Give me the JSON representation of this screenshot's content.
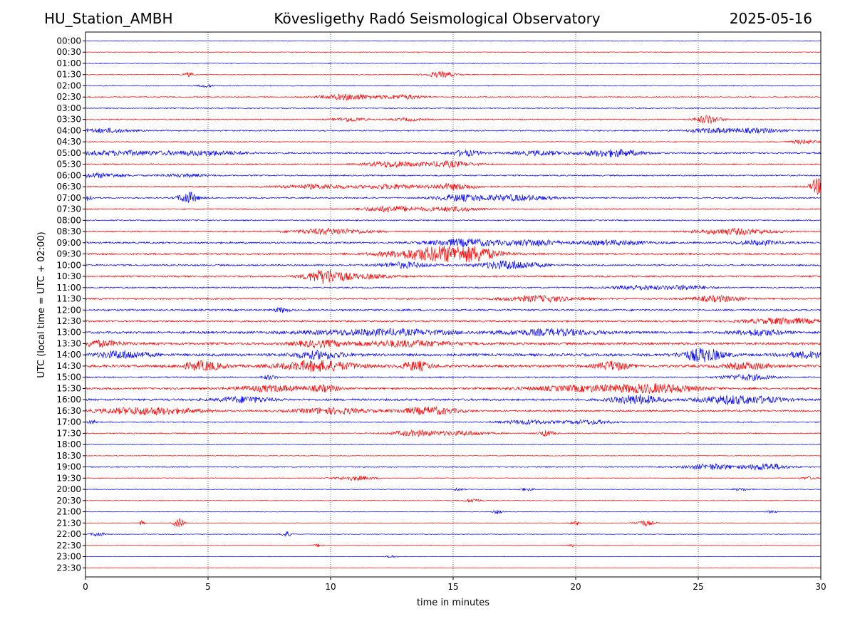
{
  "header": {
    "station": "HU_Station_AMBH",
    "title": "Kövesligethy Radó Seismological Observatory",
    "date": "2025-05-16"
  },
  "chart_data": {
    "type": "line",
    "xlabel": "time in minutes",
    "ylabel": "UTC (local time = UTC + 02:00)",
    "xlim": [
      0,
      30
    ],
    "x_ticks": [
      "0",
      "5",
      "10",
      "15",
      "20",
      "25",
      "30"
    ],
    "grid": "vertical dotted lines at each 5-minute tick",
    "colors": {
      "even_rows": "#0000ff",
      "odd_rows": "#ff0000"
    },
    "rows": [
      {
        "label": "00:00",
        "noise": 0.5,
        "events": []
      },
      {
        "label": "00:30",
        "noise": 0.5,
        "events": []
      },
      {
        "label": "01:00",
        "noise": 0.6,
        "events": []
      },
      {
        "label": "01:30",
        "noise": 0.6,
        "events": [
          {
            "t": 4.2,
            "w": 0.2,
            "a": 3
          },
          {
            "t": 14.5,
            "w": 0.6,
            "a": 4
          }
        ]
      },
      {
        "label": "02:00",
        "noise": 0.6,
        "events": [
          {
            "t": 4.9,
            "w": 0.3,
            "a": 2
          }
        ]
      },
      {
        "label": "02:30",
        "noise": 0.8,
        "events": [
          {
            "t": 10.8,
            "w": 1.2,
            "a": 4
          },
          {
            "t": 13.0,
            "w": 0.8,
            "a": 3
          }
        ]
      },
      {
        "label": "03:00",
        "noise": 0.8,
        "events": []
      },
      {
        "label": "03:30",
        "noise": 0.8,
        "events": [
          {
            "t": 10.8,
            "w": 0.6,
            "a": 3
          },
          {
            "t": 13.2,
            "w": 0.6,
            "a": 2
          },
          {
            "t": 25.4,
            "w": 0.5,
            "a": 6
          }
        ]
      },
      {
        "label": "04:00",
        "noise": 1.0,
        "events": [
          {
            "t": 0.8,
            "w": 1.0,
            "a": 3
          },
          {
            "t": 25.6,
            "w": 1.0,
            "a": 3
          },
          {
            "t": 27.5,
            "w": 1.0,
            "a": 3
          }
        ]
      },
      {
        "label": "04:30",
        "noise": 0.7,
        "events": [
          {
            "t": 29.3,
            "w": 0.5,
            "a": 3
          }
        ]
      },
      {
        "label": "05:00",
        "noise": 1.2,
        "events": [
          {
            "t": 1.5,
            "w": 2.0,
            "a": 3
          },
          {
            "t": 5.0,
            "w": 1.5,
            "a": 3
          },
          {
            "t": 15.5,
            "w": 0.6,
            "a": 4
          },
          {
            "t": 18.5,
            "w": 1.0,
            "a": 3
          },
          {
            "t": 21.5,
            "w": 1.2,
            "a": 5
          }
        ]
      },
      {
        "label": "05:30",
        "noise": 1.0,
        "events": [
          {
            "t": 12.5,
            "w": 1.0,
            "a": 4
          },
          {
            "t": 14.8,
            "w": 1.0,
            "a": 4
          }
        ]
      },
      {
        "label": "06:00",
        "noise": 1.0,
        "events": [
          {
            "t": 0.6,
            "w": 1.0,
            "a": 3
          },
          {
            "t": 4.0,
            "w": 1.0,
            "a": 2
          }
        ]
      },
      {
        "label": "06:30",
        "noise": 1.0,
        "events": [
          {
            "t": 9.5,
            "w": 1.5,
            "a": 3
          },
          {
            "t": 12.5,
            "w": 1.0,
            "a": 3
          },
          {
            "t": 15.0,
            "w": 1.0,
            "a": 4
          },
          {
            "t": 29.9,
            "w": 0.3,
            "a": 12
          }
        ]
      },
      {
        "label": "07:00",
        "noise": 1.0,
        "events": [
          {
            "t": 0.1,
            "w": 0.2,
            "a": 5
          },
          {
            "t": 4.2,
            "w": 0.4,
            "a": 8
          },
          {
            "t": 15.2,
            "w": 1.0,
            "a": 4
          },
          {
            "t": 17.5,
            "w": 1.5,
            "a": 4
          }
        ]
      },
      {
        "label": "07:30",
        "noise": 0.9,
        "events": [
          {
            "t": 12.5,
            "w": 1.2,
            "a": 4
          },
          {
            "t": 15.0,
            "w": 1.0,
            "a": 3
          }
        ]
      },
      {
        "label": "08:00",
        "noise": 0.9,
        "events": []
      },
      {
        "label": "08:30",
        "noise": 1.0,
        "events": [
          {
            "t": 10.0,
            "w": 1.5,
            "a": 4
          },
          {
            "t": 26.5,
            "w": 1.5,
            "a": 4
          }
        ]
      },
      {
        "label": "09:00",
        "noise": 1.3,
        "events": [
          {
            "t": 15.5,
            "w": 1.5,
            "a": 5
          },
          {
            "t": 18.3,
            "w": 1.0,
            "a": 4
          },
          {
            "t": 21.5,
            "w": 1.5,
            "a": 3
          },
          {
            "t": 27.5,
            "w": 1.0,
            "a": 3
          }
        ]
      },
      {
        "label": "09:30",
        "noise": 1.3,
        "events": [
          {
            "t": 14.5,
            "w": 2.0,
            "a": 10
          },
          {
            "t": 15.6,
            "w": 0.8,
            "a": 9
          }
        ]
      },
      {
        "label": "10:00",
        "noise": 1.2,
        "events": [
          {
            "t": 13.0,
            "w": 1.0,
            "a": 4
          },
          {
            "t": 17.3,
            "w": 1.2,
            "a": 6
          }
        ]
      },
      {
        "label": "10:30",
        "noise": 1.2,
        "events": [
          {
            "t": 9.8,
            "w": 0.8,
            "a": 10
          },
          {
            "t": 11.5,
            "w": 1.0,
            "a": 3
          }
        ]
      },
      {
        "label": "11:00",
        "noise": 1.0,
        "events": [
          {
            "t": 22.5,
            "w": 1.0,
            "a": 3
          },
          {
            "t": 24.5,
            "w": 1.0,
            "a": 3
          }
        ]
      },
      {
        "label": "11:30",
        "noise": 1.1,
        "events": [
          {
            "t": 18.5,
            "w": 1.5,
            "a": 4
          },
          {
            "t": 25.8,
            "w": 1.0,
            "a": 4
          }
        ]
      },
      {
        "label": "12:00",
        "noise": 1.4,
        "events": [
          {
            "t": 8.0,
            "w": 0.3,
            "a": 3
          }
        ]
      },
      {
        "label": "12:30",
        "noise": 1.3,
        "events": [
          {
            "t": 28.5,
            "w": 1.5,
            "a": 4
          }
        ]
      },
      {
        "label": "13:00",
        "noise": 1.7,
        "events": [
          {
            "t": 12.0,
            "w": 3.0,
            "a": 4
          },
          {
            "t": 19.0,
            "w": 2.0,
            "a": 4
          },
          {
            "t": 27.5,
            "w": 1.0,
            "a": 4
          }
        ]
      },
      {
        "label": "13:30",
        "noise": 1.8,
        "events": [
          {
            "t": 0.5,
            "w": 1.0,
            "a": 4
          },
          {
            "t": 9.5,
            "w": 1.0,
            "a": 4
          },
          {
            "t": 13.0,
            "w": 2.0,
            "a": 4
          }
        ]
      },
      {
        "label": "14:00",
        "noise": 2.0,
        "events": [
          {
            "t": 1.5,
            "w": 1.0,
            "a": 5
          },
          {
            "t": 9.5,
            "w": 1.0,
            "a": 5
          },
          {
            "t": 25.2,
            "w": 0.8,
            "a": 9
          },
          {
            "t": 29.5,
            "w": 1.0,
            "a": 4
          }
        ]
      },
      {
        "label": "14:30",
        "noise": 2.0,
        "events": [
          {
            "t": 4.8,
            "w": 0.8,
            "a": 6
          },
          {
            "t": 9.5,
            "w": 1.5,
            "a": 7
          },
          {
            "t": 13.5,
            "w": 0.6,
            "a": 6
          },
          {
            "t": 21.5,
            "w": 0.6,
            "a": 6
          },
          {
            "t": 27.0,
            "w": 1.0,
            "a": 4
          }
        ]
      },
      {
        "label": "15:00",
        "noise": 1.0,
        "events": [
          {
            "t": 7.5,
            "w": 0.3,
            "a": 3
          },
          {
            "t": 27.0,
            "w": 1.0,
            "a": 4
          }
        ]
      },
      {
        "label": "15:30",
        "noise": 1.4,
        "events": [
          {
            "t": 7.5,
            "w": 1.5,
            "a": 4
          },
          {
            "t": 9.8,
            "w": 0.6,
            "a": 4
          },
          {
            "t": 21.0,
            "w": 3.0,
            "a": 4
          },
          {
            "t": 23.5,
            "w": 1.5,
            "a": 4
          }
        ]
      },
      {
        "label": "16:00",
        "noise": 1.6,
        "events": [
          {
            "t": 6.5,
            "w": 1.0,
            "a": 4
          },
          {
            "t": 22.5,
            "w": 1.0,
            "a": 6
          },
          {
            "t": 26.0,
            "w": 1.0,
            "a": 5
          },
          {
            "t": 27.5,
            "w": 1.0,
            "a": 4
          }
        ]
      },
      {
        "label": "16:30",
        "noise": 1.3,
        "events": [
          {
            "t": 2.5,
            "w": 2.0,
            "a": 5
          },
          {
            "t": 10.0,
            "w": 1.5,
            "a": 4
          },
          {
            "t": 14.0,
            "w": 1.2,
            "a": 5
          }
        ]
      },
      {
        "label": "17:00",
        "noise": 0.8,
        "events": [
          {
            "t": 0.3,
            "w": 0.2,
            "a": 3
          },
          {
            "t": 18.0,
            "w": 1.0,
            "a": 3
          },
          {
            "t": 20.5,
            "w": 1.0,
            "a": 3
          }
        ]
      },
      {
        "label": "17:30",
        "noise": 0.8,
        "events": [
          {
            "t": 13.5,
            "w": 1.0,
            "a": 4
          },
          {
            "t": 15.5,
            "w": 1.0,
            "a": 3
          },
          {
            "t": 18.8,
            "w": 0.3,
            "a": 4
          }
        ]
      },
      {
        "label": "18:00",
        "noise": 0.5,
        "events": []
      },
      {
        "label": "18:30",
        "noise": 0.5,
        "events": []
      },
      {
        "label": "19:00",
        "noise": 0.8,
        "events": [
          {
            "t": 25.5,
            "w": 1.0,
            "a": 4
          },
          {
            "t": 27.8,
            "w": 0.8,
            "a": 5
          }
        ]
      },
      {
        "label": "19:30",
        "noise": 0.6,
        "events": [
          {
            "t": 11.0,
            "w": 0.8,
            "a": 3
          },
          {
            "t": 29.5,
            "w": 0.3,
            "a": 2
          }
        ]
      },
      {
        "label": "20:00",
        "noise": 0.5,
        "events": [
          {
            "t": 15.2,
            "w": 0.2,
            "a": 2
          },
          {
            "t": 18.0,
            "w": 0.3,
            "a": 2
          },
          {
            "t": 26.8,
            "w": 0.3,
            "a": 2
          }
        ]
      },
      {
        "label": "20:30",
        "noise": 0.5,
        "events": [
          {
            "t": 15.8,
            "w": 0.3,
            "a": 3
          }
        ]
      },
      {
        "label": "21:00",
        "noise": 0.4,
        "events": [
          {
            "t": 16.8,
            "w": 0.2,
            "a": 3
          },
          {
            "t": 28.0,
            "w": 0.2,
            "a": 2
          }
        ]
      },
      {
        "label": "21:30",
        "noise": 0.4,
        "events": [
          {
            "t": 2.3,
            "w": 0.1,
            "a": 3
          },
          {
            "t": 3.8,
            "w": 0.2,
            "a": 7
          },
          {
            "t": 20.0,
            "w": 0.2,
            "a": 3
          },
          {
            "t": 22.8,
            "w": 0.4,
            "a": 4
          }
        ]
      },
      {
        "label": "22:00",
        "noise": 0.4,
        "events": [
          {
            "t": 0.5,
            "w": 0.3,
            "a": 3
          },
          {
            "t": 8.2,
            "w": 0.2,
            "a": 4
          }
        ]
      },
      {
        "label": "22:30",
        "noise": 0.4,
        "events": [
          {
            "t": 9.5,
            "w": 0.2,
            "a": 2
          },
          {
            "t": 19.8,
            "w": 0.2,
            "a": 2
          }
        ]
      },
      {
        "label": "23:00",
        "noise": 0.3,
        "events": [
          {
            "t": 12.5,
            "w": 0.2,
            "a": 2
          }
        ]
      },
      {
        "label": "23:30",
        "noise": 0.3,
        "events": []
      }
    ]
  }
}
